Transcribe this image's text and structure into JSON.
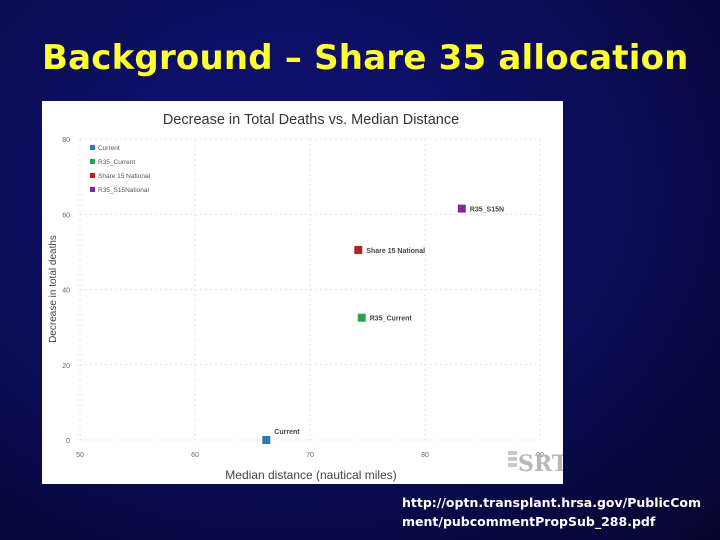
{
  "slide": {
    "title": "Background – Share 35 allocation",
    "source_url": "http://optn.transplant.hrsa.gov/PublicComment/pubcommentPropSub_288.pdf",
    "logo_text": "SRTR"
  },
  "colors": {
    "background": "#0a0c55",
    "title": "#ffff33",
    "highlight_circle": "#cc2222"
  },
  "chart_data": {
    "type": "scatter",
    "title": "Decrease in Total Deaths vs. Median Distance",
    "xlabel": "Median distance (nautical miles)",
    "ylabel": "Decrease in total deaths",
    "xlim": [
      50,
      90
    ],
    "ylim": [
      0,
      80
    ],
    "x_ticks": [
      50,
      60,
      70,
      80,
      90
    ],
    "y_ticks": [
      0,
      20,
      40,
      60,
      80
    ],
    "grid": true,
    "legend_position": "top-left",
    "highlighted_series": "R35_S15N",
    "series": [
      {
        "name": "Current",
        "color": "#2a7ab8",
        "x": 66.2,
        "y": 0,
        "label": "Current"
      },
      {
        "name": "R35_Current",
        "color": "#2aa050",
        "x": 74.5,
        "y": 32.5,
        "label": "R35_Current"
      },
      {
        "name": "Share 15 National",
        "color": "#b52020",
        "x": 74.2,
        "y": 50.5,
        "label": "Share 15 National"
      },
      {
        "name": "R35_S15National",
        "color": "#7a2aa0",
        "x": 83.2,
        "y": 61.5,
        "label": "R35_S15N"
      }
    ]
  }
}
